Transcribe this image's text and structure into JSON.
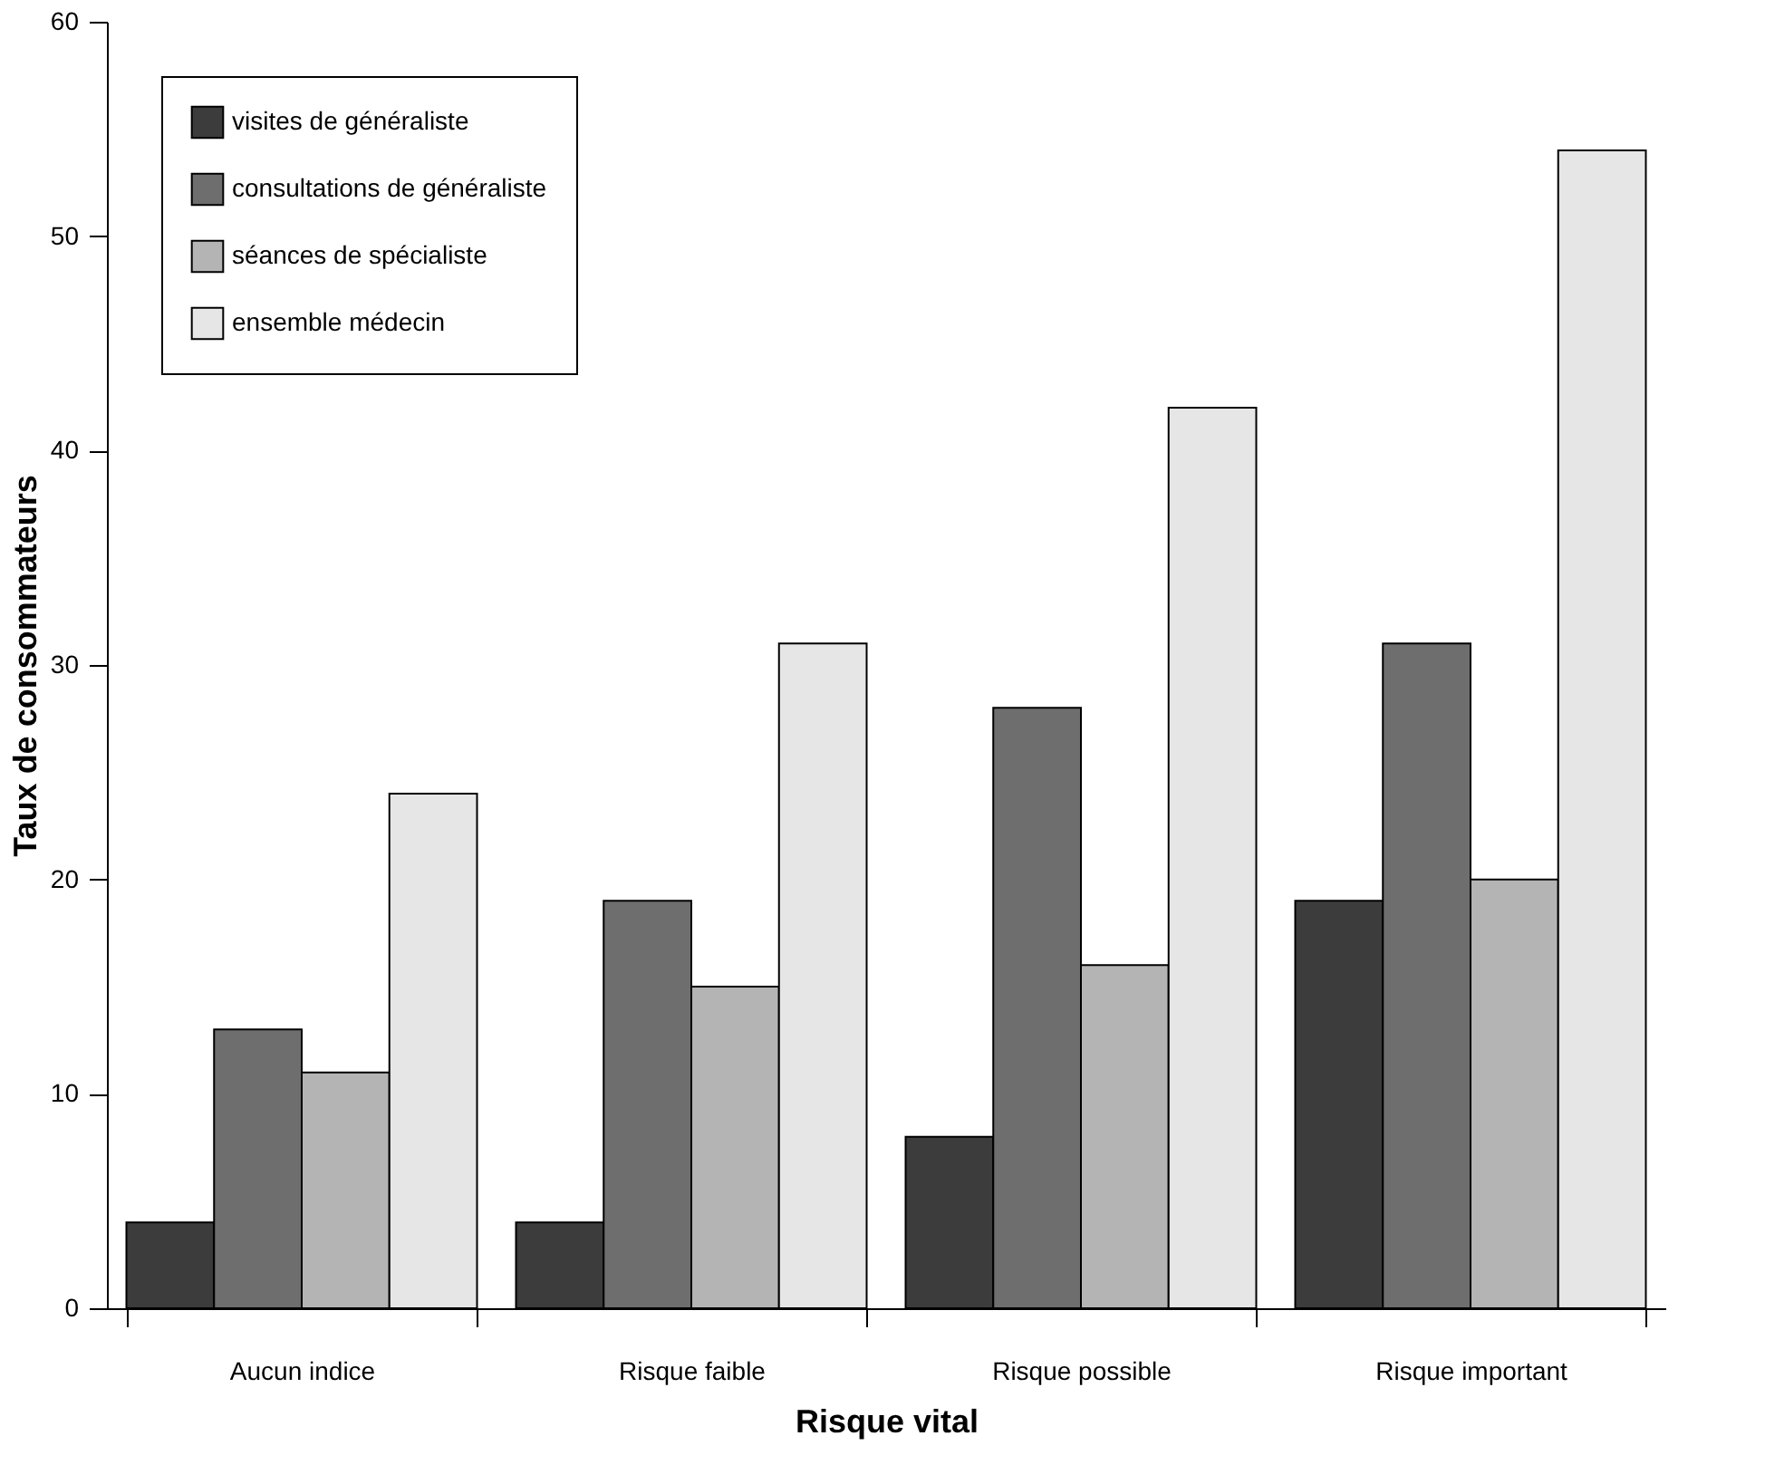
{
  "chart_data": {
    "type": "bar",
    "xlabel": "Risque vital",
    "ylabel": "Taux de consommateurs",
    "categories": [
      "Aucun indice",
      "Risque faible",
      "Risque possible",
      "Risque important"
    ],
    "series": [
      {
        "name": "visites de généraliste",
        "color": "#3c3c3c",
        "values": [
          4,
          4,
          8,
          19
        ]
      },
      {
        "name": "consultations de généraliste",
        "color": "#6e6e6e",
        "values": [
          13,
          19,
          28,
          31
        ]
      },
      {
        "name": "séances de spécialiste",
        "color": "#b4b4b4",
        "values": [
          11,
          15,
          16,
          20
        ]
      },
      {
        "name": "ensemble médecin",
        "color": "#e6e6e6",
        "values": [
          24,
          31,
          42,
          54
        ]
      }
    ],
    "ylim": [
      0,
      60
    ],
    "yticks": [
      0,
      10,
      20,
      30,
      40,
      50,
      60
    ],
    "grid": false,
    "legend": "top left"
  }
}
